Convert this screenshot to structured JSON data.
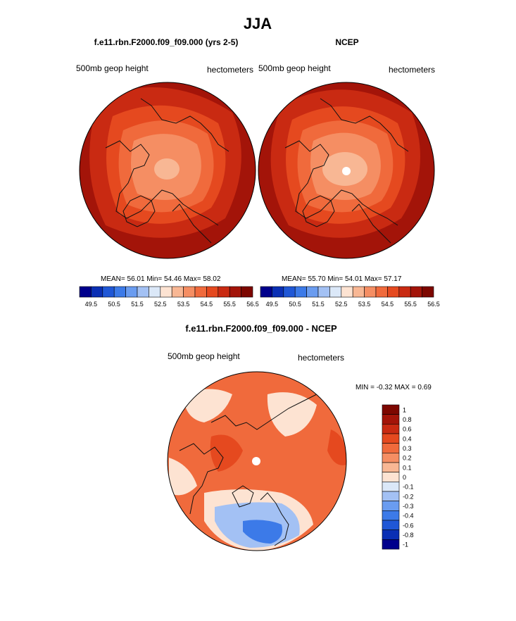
{
  "main_title": "JJA",
  "panels": {
    "left": {
      "title": "f.e11.rbn.F2000.f09_f09.000 (yrs 2-5)",
      "left_label": "500mb geop height",
      "right_label": "hectometers",
      "stats": "MEAN=  56.01  Min=  54.46  Max=  58.02"
    },
    "right": {
      "title": "NCEP",
      "left_label": "500mb geop height",
      "right_label": "hectometers",
      "stats": "MEAN=  55.70  Min=  54.01  Max=  57.17"
    },
    "diff": {
      "title": "f.e11.rbn.F2000.f09_f09.000 - NCEP",
      "left_label": "500mb geop height",
      "right_label": "hectometers",
      "stats": "MIN =  -0.32 MAX =   0.69"
    }
  },
  "colors": {
    "abs_scale": [
      "#00008c",
      "#0a2fb4",
      "#1f57d6",
      "#3c7ae8",
      "#6a9cf0",
      "#a3c1f4",
      "#dbe8f8",
      "#fde3d2",
      "#f8b794",
      "#f58e63",
      "#f06a3c",
      "#e5491f",
      "#c92a12",
      "#a31409",
      "#7d0700"
    ],
    "diff_scale": [
      "#00008c",
      "#0a2fb4",
      "#1f57d6",
      "#3c7ae8",
      "#6a9cf0",
      "#a3c1f4",
      "#dbe8f8",
      "#fde3d2",
      "#f8b794",
      "#f58e63",
      "#f06a3c",
      "#e5491f",
      "#c92a12",
      "#a31409",
      "#7d0700"
    ],
    "coast": "#111111",
    "pole": "#ffffff"
  },
  "chart_data": [
    {
      "type": "heatmap",
      "name": "model",
      "projection": "north polar stereographic",
      "title": "f.e11.rbn.F2000.f09_f09.000 (yrs 2-5)",
      "variable": "500mb geop height",
      "units": "hectometers",
      "mean": 56.01,
      "min": 54.46,
      "max": 58.02,
      "colorbar_levels": [
        49.5,
        50,
        50.5,
        51,
        51.5,
        52,
        52.5,
        53,
        53.5,
        54,
        54.5,
        55,
        55.5,
        56,
        56.5
      ],
      "colorbar_tick_labels": [
        "49.5",
        "50.5",
        "51.5",
        "52.5",
        "53.5",
        "54.5",
        "55.5",
        "56.5"
      ],
      "contour_rings": [
        58.0,
        57.0,
        56.5,
        56.0,
        55.5,
        55.0,
        54.5
      ]
    },
    {
      "type": "heatmap",
      "name": "ncep",
      "projection": "north polar stereographic",
      "title": "NCEP",
      "variable": "500mb geop height",
      "units": "hectometers",
      "mean": 55.7,
      "min": 54.01,
      "max": 57.17,
      "colorbar_levels": [
        49.5,
        50,
        50.5,
        51,
        51.5,
        52,
        52.5,
        53,
        53.5,
        54,
        54.5,
        55,
        55.5,
        56,
        56.5
      ],
      "colorbar_tick_labels": [
        "49.5",
        "50.5",
        "51.5",
        "52.5",
        "53.5",
        "54.5",
        "55.5",
        "56.5"
      ],
      "contour_rings": [
        57.0,
        56.5,
        56.0,
        55.5,
        55.0,
        54.5,
        54.0
      ]
    },
    {
      "type": "heatmap",
      "name": "difference",
      "projection": "north polar stereographic",
      "title": "f.e11.rbn.F2000.f09_f09.000 - NCEP",
      "variable": "500mb geop height",
      "units": "hectometers",
      "min": -0.32,
      "max": 0.69,
      "colorbar_levels": [
        -1,
        -0.8,
        -0.6,
        -0.4,
        -0.3,
        -0.2,
        -0.1,
        0,
        0.1,
        0.2,
        0.3,
        0.4,
        0.6,
        0.8,
        1
      ],
      "colorbar_tick_labels": [
        "1",
        "0.8",
        "0.6",
        "0.4",
        "0.3",
        "0.2",
        "0.1",
        "0",
        "-0.1",
        "-0.2",
        "-0.3",
        "-0.4",
        "-0.6",
        "-0.8",
        "-1"
      ]
    }
  ]
}
